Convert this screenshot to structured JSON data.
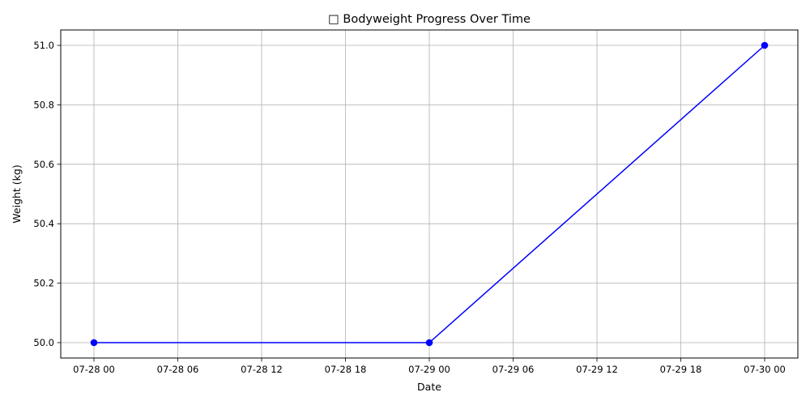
{
  "chart_data": {
    "type": "line",
    "title": "□ Bodyweight Progress Over Time",
    "xlabel": "Date",
    "ylabel": "Weight (kg)",
    "x_ticks": [
      "07-28 00",
      "07-28 06",
      "07-28 12",
      "07-28 18",
      "07-29 00",
      "07-29 06",
      "07-29 12",
      "07-29 18",
      "07-30 00"
    ],
    "y_ticks": [
      "50.0",
      "50.2",
      "50.4",
      "50.6",
      "50.8",
      "51.0"
    ],
    "x_range": [
      "07-28 00",
      "07-30 00"
    ],
    "ylim": [
      50.0,
      51.0
    ],
    "grid": true,
    "series": [
      {
        "color": "#0000ff",
        "marker": "circle",
        "points": [
          {
            "x": "07-28 00",
            "y": 50.0
          },
          {
            "x": "07-29 00",
            "y": 50.0
          },
          {
            "x": "07-30 00",
            "y": 51.0
          }
        ]
      }
    ]
  }
}
